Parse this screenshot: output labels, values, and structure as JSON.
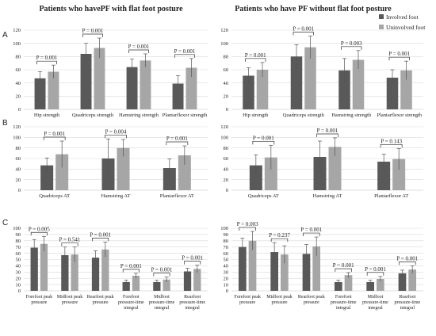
{
  "figure": {
    "headings": [
      "Patients who havePF with flat foot posture",
      "Patients who have PF without flat foot posture"
    ],
    "panel_labels": [
      "A",
      "B",
      "C"
    ],
    "legend": {
      "involved": "Involved foot",
      "uninvolved": "Uninvolved foot"
    }
  },
  "colors": {
    "involved": "#595959",
    "uninvolved": "#a6a6a6",
    "grid": "#d9d9d9"
  },
  "chart_data": [
    {
      "id": "A-left",
      "type": "bar",
      "categories": [
        "Hip strength",
        "Quadriceps strength",
        "Hamstring strength",
        "Plantarflexor strength"
      ],
      "series": [
        {
          "name": "Involved foot",
          "values": [
            47,
            84,
            64,
            39
          ],
          "errors": [
            10,
            16,
            12,
            12
          ]
        },
        {
          "name": "Uninvolved foot",
          "values": [
            57,
            93,
            74,
            63
          ],
          "errors": [
            10,
            15,
            10,
            14
          ]
        }
      ],
      "pvalues": [
        "P = 0.001",
        "P = 0.001",
        "P = 0.001",
        "P = 0.001"
      ],
      "ylim": [
        0,
        120
      ],
      "yticks": [
        "0",
        "20",
        "40",
        "60",
        "80",
        "100",
        "120"
      ],
      "grid": true
    },
    {
      "id": "A-right",
      "type": "bar",
      "categories": [
        "Hip strength",
        "Quadriceps strength",
        "Hamstring strength",
        "Plantarflexor strength"
      ],
      "series": [
        {
          "name": "Involved foot",
          "values": [
            51,
            80,
            59,
            48
          ],
          "errors": [
            12,
            18,
            18,
            12
          ]
        },
        {
          "name": "Uninvolved foot",
          "values": [
            60,
            94,
            75,
            59
          ],
          "errors": [
            11,
            17,
            14,
            14
          ]
        }
      ],
      "pvalues": [
        "P = 0.001",
        "P = 0.001",
        "P = 0.003",
        "P = 0.001"
      ],
      "ylim": [
        0,
        120
      ],
      "yticks": [
        "0",
        "20",
        "40",
        "60",
        "80",
        "100",
        "120"
      ],
      "grid": true
    },
    {
      "id": "B-left",
      "type": "bar",
      "categories": [
        "Quadriceps AT",
        "Hamstring AT",
        "Plantarflexor AT"
      ],
      "series": [
        {
          "name": "Involved foot",
          "values": [
            47,
            60,
            42
          ],
          "errors": [
            14,
            37,
            17
          ]
        },
        {
          "name": "Uninvolved foot",
          "values": [
            68,
            80,
            66
          ],
          "errors": [
            25,
            16,
            18
          ]
        }
      ],
      "pvalues": [
        "P = 0.001",
        "P = 0.004",
        "P = 0.001"
      ],
      "ylim": [
        0,
        120
      ],
      "yticks": [
        "0",
        "20",
        "40",
        "60",
        "80",
        "100",
        "120"
      ],
      "grid": true
    },
    {
      "id": "B-right",
      "type": "bar",
      "categories": [
        "Quadriceps AT",
        "Hamstring AT",
        "Plantarflexor AT"
      ],
      "series": [
        {
          "name": "Involved foot",
          "values": [
            47,
            63,
            54
          ],
          "errors": [
            20,
            30,
            14
          ]
        },
        {
          "name": "Uninvolved foot",
          "values": [
            62,
            82,
            59
          ],
          "errors": [
            23,
            17,
            20
          ]
        }
      ],
      "pvalues": [
        "P = 0.001",
        "P = 0.001",
        "P = 0.143"
      ],
      "ylim": [
        0,
        120
      ],
      "yticks": [
        "0",
        "20",
        "40",
        "60",
        "80",
        "100",
        "120"
      ],
      "grid": true
    },
    {
      "id": "C-left",
      "type": "bar",
      "categories": [
        "Forefoot peak pressure",
        "Midfoot peak pressure",
        "Rearfoot peak pressure",
        "Forefoot pressure-time integral",
        "Midfoot pressure-time integral",
        "Rearfoot pressure-time integral"
      ],
      "series": [
        {
          "name": "Involved foot",
          "values": [
            69,
            57,
            53,
            14,
            14,
            31
          ],
          "errors": [
            13,
            13,
            11,
            3,
            3,
            5
          ]
        },
        {
          "name": "Uninvolved foot",
          "values": [
            75,
            58,
            66,
            24,
            18,
            35
          ],
          "errors": [
            12,
            12,
            12,
            4,
            4,
            6
          ]
        }
      ],
      "pvalues": [
        "P = 0.005",
        "P = 0.541",
        "P = 0.001",
        "P = 0.001",
        "P = 0.001",
        "P = 0.001"
      ],
      "ylim": [
        0,
        100
      ],
      "yticks": [
        "0",
        "10",
        "20",
        "30",
        "40",
        "50",
        "60",
        "70",
        "80",
        "90",
        "100"
      ],
      "grid": true
    },
    {
      "id": "C-right",
      "type": "bar",
      "categories": [
        "Forefoot peak pressure",
        "Midfoot peak pressure",
        "Rearfoot peak pressure",
        "Forefoot pressure-time integral",
        "Midfoot pressure-time integral",
        "Rearfoot pressure-time integral"
      ],
      "series": [
        {
          "name": "Involved foot",
          "values": [
            70,
            62,
            59,
            14,
            14,
            28
          ],
          "errors": [
            14,
            15,
            15,
            3,
            3,
            5
          ]
        },
        {
          "name": "Uninvolved foot",
          "values": [
            80,
            58,
            71,
            25,
            19,
            34
          ],
          "errors": [
            15,
            14,
            15,
            4,
            4,
            6
          ]
        }
      ],
      "pvalues": [
        "P = 0.003",
        "P = 0.237",
        "P = 0.001",
        "P = 0.001",
        "P = 0.001",
        "P = 0.001"
      ],
      "ylim": [
        0,
        100
      ],
      "yticks": [
        "0",
        "10",
        "20",
        "30",
        "40",
        "50",
        "60",
        "70",
        "80",
        "90",
        "100"
      ],
      "grid": true
    }
  ]
}
